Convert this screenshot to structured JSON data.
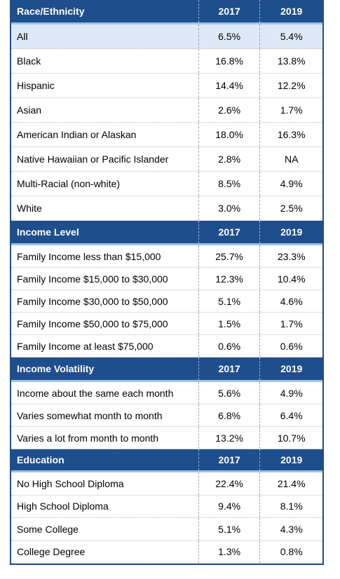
{
  "sections": [
    {
      "header": [
        "Race/Ethnicity",
        "2017",
        "2019"
      ],
      "rows": [
        [
          "All",
          "6.5%",
          "5.4%"
        ],
        [
          "Black",
          "16.8%",
          "13.8%"
        ],
        [
          "Hispanic",
          "14.4%",
          "12.2%"
        ],
        [
          "Asian",
          "2.6%",
          "1.7%"
        ],
        [
          "American Indian or Alaskan",
          "18.0%",
          "16.3%"
        ],
        [
          "Native Hawaiian or Pacific Islander",
          "2.8%",
          "NA"
        ],
        [
          "Multi-Racial (non-white)",
          "8.5%",
          "4.9%"
        ],
        [
          "White",
          "3.0%",
          "2.5%"
        ]
      ]
    },
    {
      "header": [
        "Income Level",
        "2017",
        "2019"
      ],
      "rows": [
        [
          "Family Income less than $15,000",
          "25.7%",
          "23.3%"
        ],
        [
          "Family Income $15,000 to $30,000",
          "12.3%",
          "10.4%"
        ],
        [
          "Family Income $30,000 to $50,000",
          "5.1%",
          "4.6%"
        ],
        [
          "Family Income $50,000 to $75,000",
          "1.5%",
          "1.7%"
        ],
        [
          "Family Income at least $75,000",
          "0.6%",
          "0.6%"
        ]
      ]
    },
    {
      "header": [
        "Income Volatility",
        "2017",
        "2019"
      ],
      "rows": [
        [
          "Income about the same each month",
          "5.6%",
          "4.9%"
        ],
        [
          "Varies somewhat month to month",
          "6.8%",
          "6.4%"
        ],
        [
          "Varies a lot from month to month",
          "13.2%",
          "10.7%"
        ]
      ]
    },
    {
      "header": [
        "Education",
        "2017",
        "2019"
      ],
      "rows": [
        [
          "No High School Diploma",
          "22.4%",
          "21.4%"
        ],
        [
          "High School Diploma",
          "9.4%",
          "8.1%"
        ],
        [
          "Some College",
          "5.1%",
          "4.3%"
        ],
        [
          "College Degree",
          "1.3%",
          "0.8%"
        ]
      ]
    }
  ]
}
